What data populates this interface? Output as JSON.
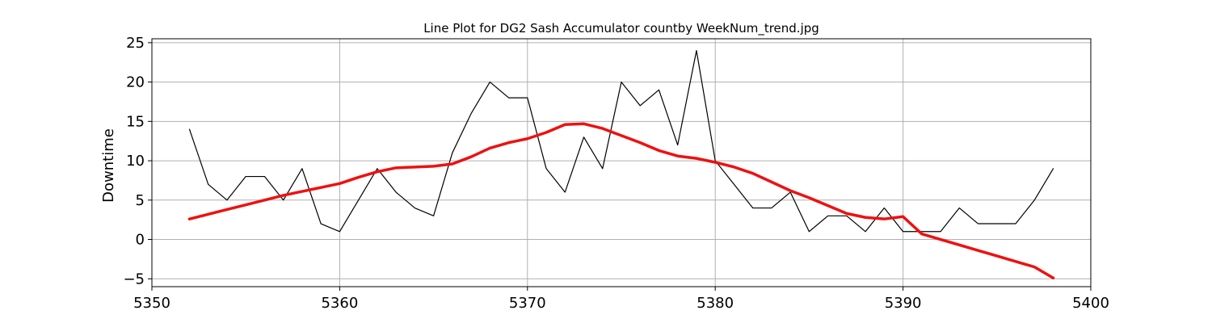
{
  "chart_data": {
    "type": "line",
    "title": "Line Plot for DG2 Sash Accumulator countby WeekNum_trend.jpg",
    "xlabel": "",
    "ylabel": "Downtime",
    "xlim": [
      5350,
      5400
    ],
    "ylim": [
      -6,
      25.5
    ],
    "xticks": [
      5350,
      5360,
      5370,
      5380,
      5390,
      5400
    ],
    "yticks": [
      -5,
      0,
      5,
      10,
      15,
      20,
      25
    ],
    "grid": true,
    "x": [
      5352,
      5353,
      5354,
      5355,
      5356,
      5357,
      5358,
      5359,
      5360,
      5361,
      5362,
      5363,
      5364,
      5365,
      5366,
      5367,
      5368,
      5369,
      5370,
      5371,
      5372,
      5373,
      5374,
      5375,
      5376,
      5377,
      5378,
      5379,
      5380,
      5381,
      5382,
      5383,
      5384,
      5385,
      5386,
      5387,
      5388,
      5389,
      5390,
      5391,
      5392,
      5393,
      5394,
      5395,
      5396,
      5397,
      5398
    ],
    "series": [
      {
        "color": "#000000",
        "line_width": 1.2,
        "values": [
          14,
          7,
          5,
          8,
          8,
          5,
          9,
          2,
          1,
          5,
          9,
          6,
          4,
          3,
          11,
          16,
          20,
          18,
          18,
          9,
          6,
          13,
          9,
          20,
          17,
          19,
          12,
          24,
          10,
          7,
          4,
          4,
          6,
          1,
          3,
          3,
          1,
          4,
          1,
          1,
          1,
          4,
          2,
          2,
          2,
          5,
          9
        ]
      },
      {
        "color": "#ee1111",
        "line_width": 3.5,
        "values": [
          2.6,
          3.2,
          3.8,
          4.4,
          5.0,
          5.6,
          6.1,
          6.6,
          7.1,
          7.9,
          8.6,
          9.1,
          9.2,
          9.3,
          9.6,
          10.5,
          11.6,
          12.3,
          12.8,
          13.6,
          14.6,
          14.7,
          14.1,
          13.2,
          12.3,
          11.3,
          10.6,
          10.3,
          9.8,
          9.2,
          8.4,
          7.3,
          6.2,
          5.3,
          4.3,
          3.3,
          2.8,
          2.6,
          2.9,
          0.7,
          0.0,
          -0.7,
          -1.4,
          -2.1,
          -2.8,
          -3.5,
          -4.9
        ]
      }
    ]
  }
}
